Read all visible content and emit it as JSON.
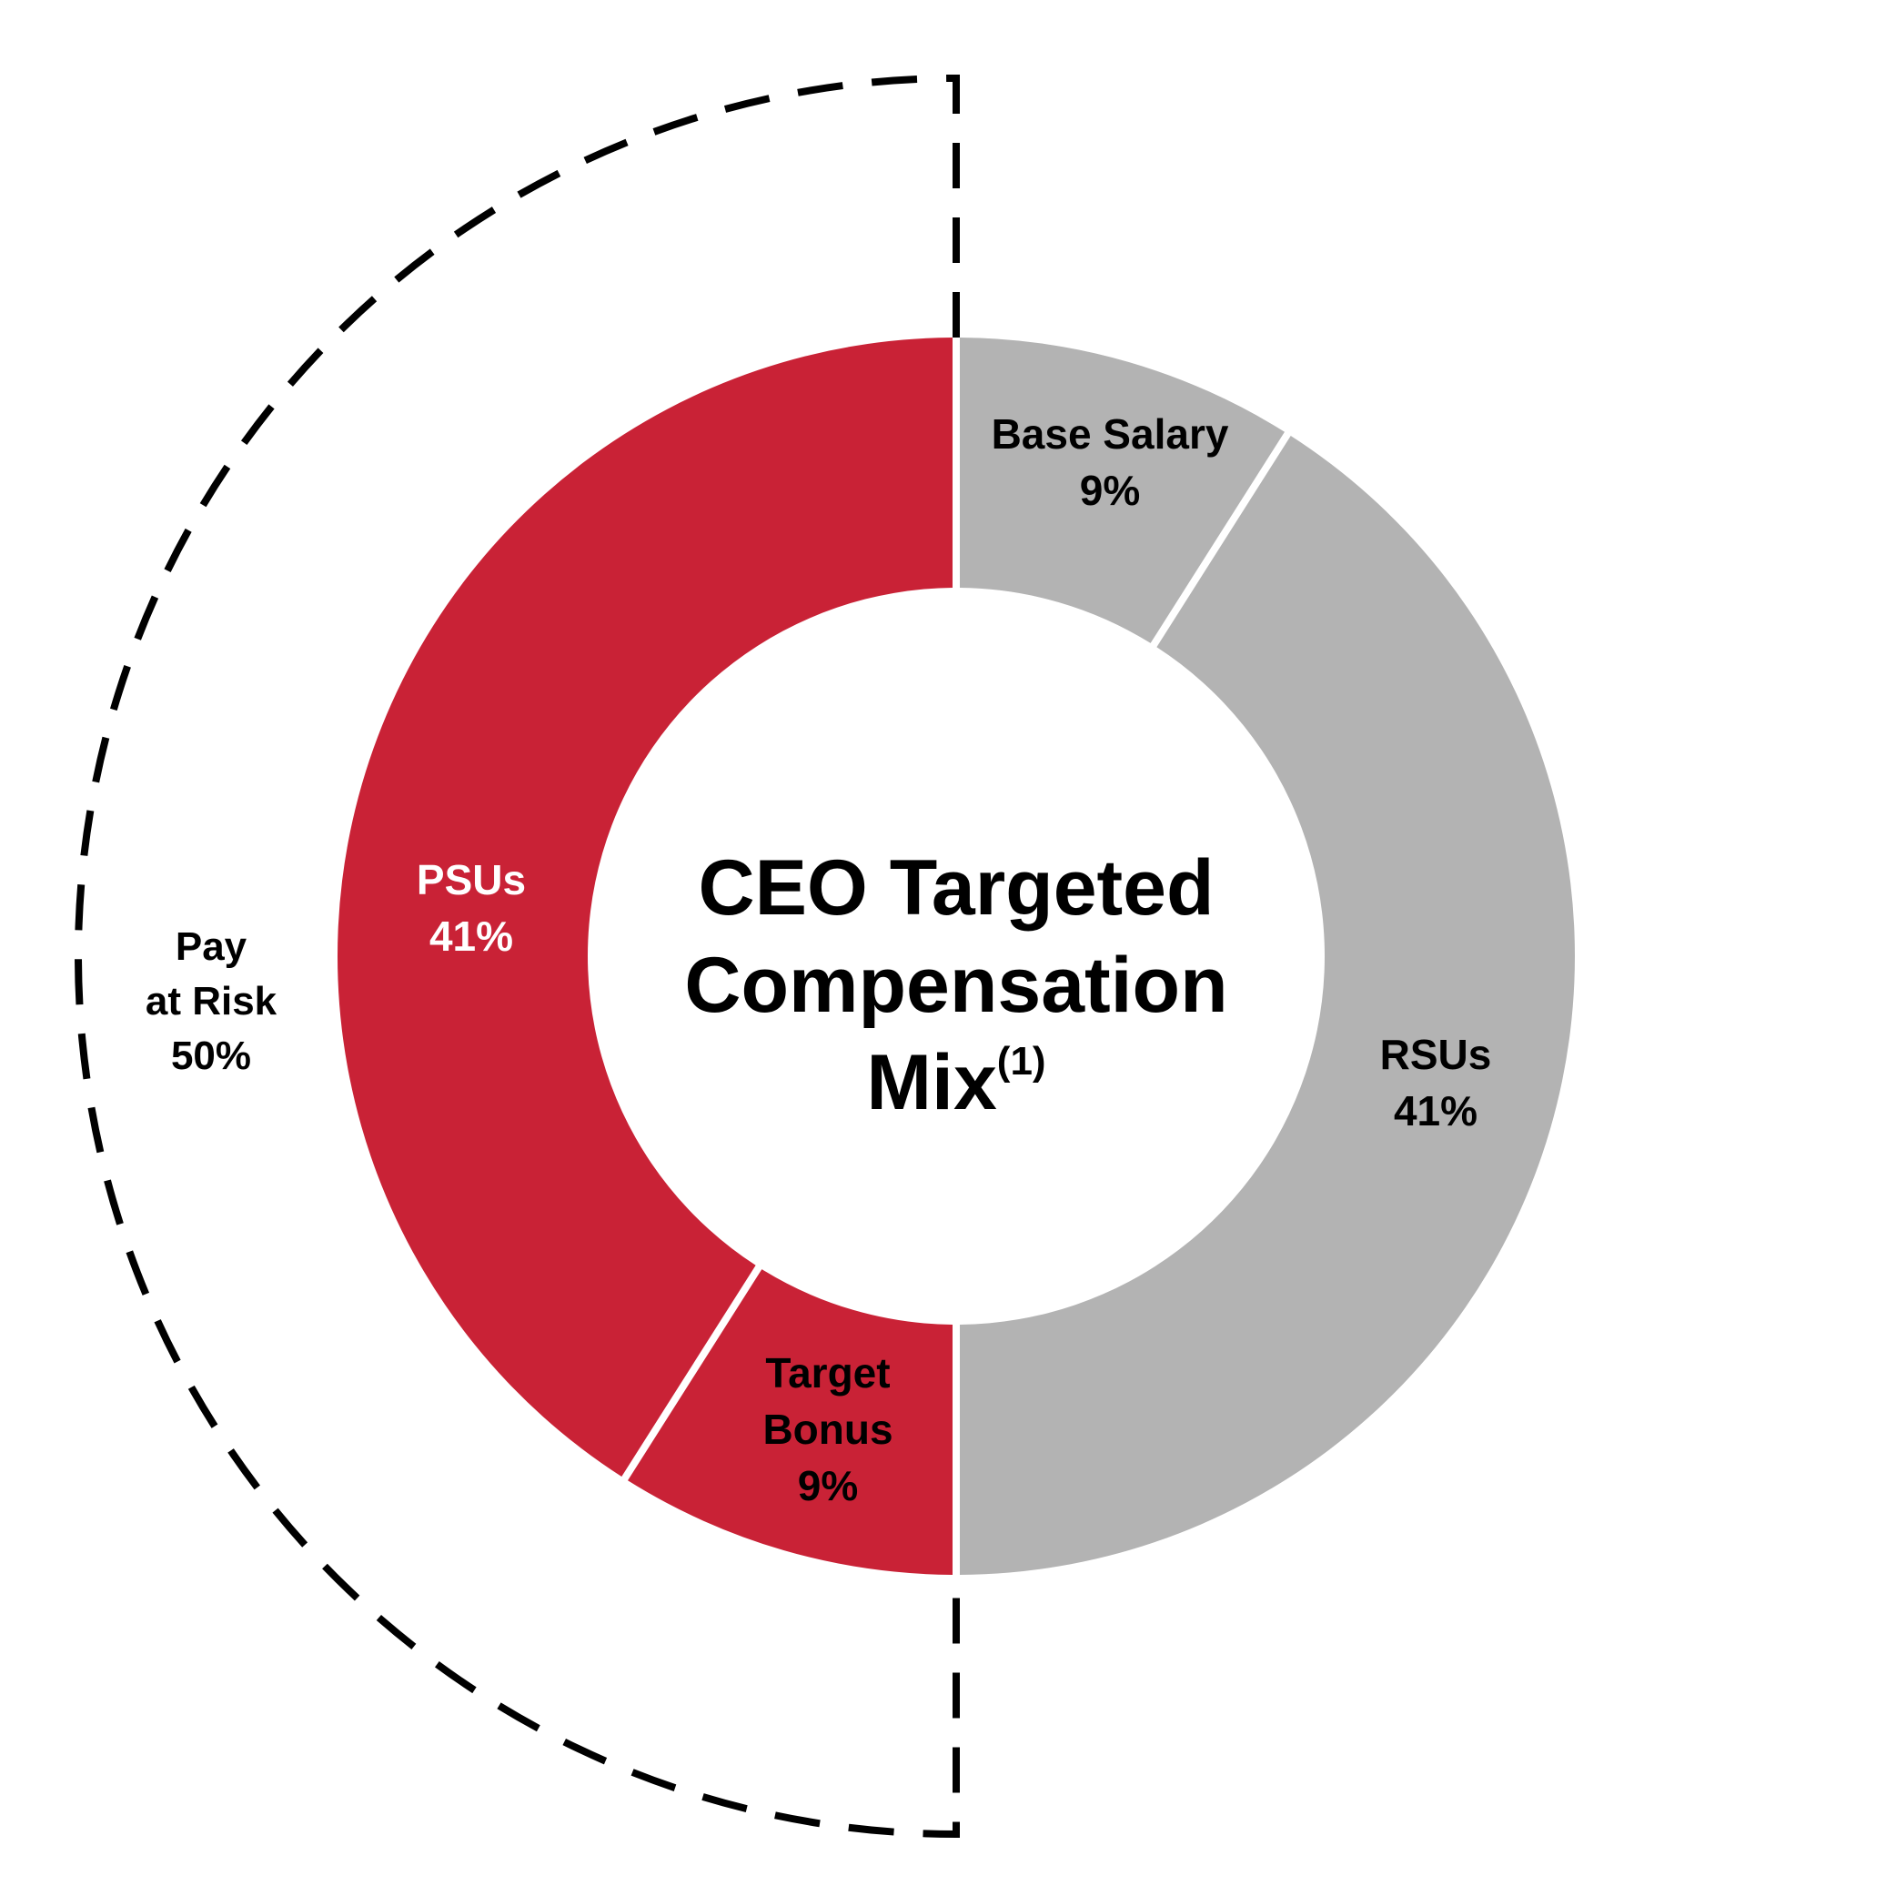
{
  "chart_data": {
    "type": "pie",
    "title_lines": [
      "CEO Targeted",
      "Compensation",
      "Mix"
    ],
    "title_superscript": "(1)",
    "slices": [
      {
        "label": "Base Salary",
        "label_lines": [
          "Base Salary"
        ],
        "value_label": "9%",
        "value": 9,
        "color": "#b3b3b3",
        "text_color": "#000000"
      },
      {
        "label": "RSUs",
        "label_lines": [
          "RSUs"
        ],
        "value_label": "41%",
        "value": 41,
        "color": "#b3b3b3",
        "text_color": "#000000"
      },
      {
        "label": "Target Bonus",
        "label_lines": [
          "Target",
          "Bonus"
        ],
        "value_label": "9%",
        "value": 9,
        "color": "#c92236",
        "text_color": "#000000"
      },
      {
        "label": "PSUs",
        "label_lines": [
          "PSUs"
        ],
        "value_label": "41%",
        "value": 41,
        "color": "#c92236",
        "text_color": "#ffffff"
      }
    ],
    "bracket": {
      "label_lines": [
        "Pay",
        "at Risk"
      ],
      "value_label": "50%",
      "color": "#000000"
    }
  }
}
